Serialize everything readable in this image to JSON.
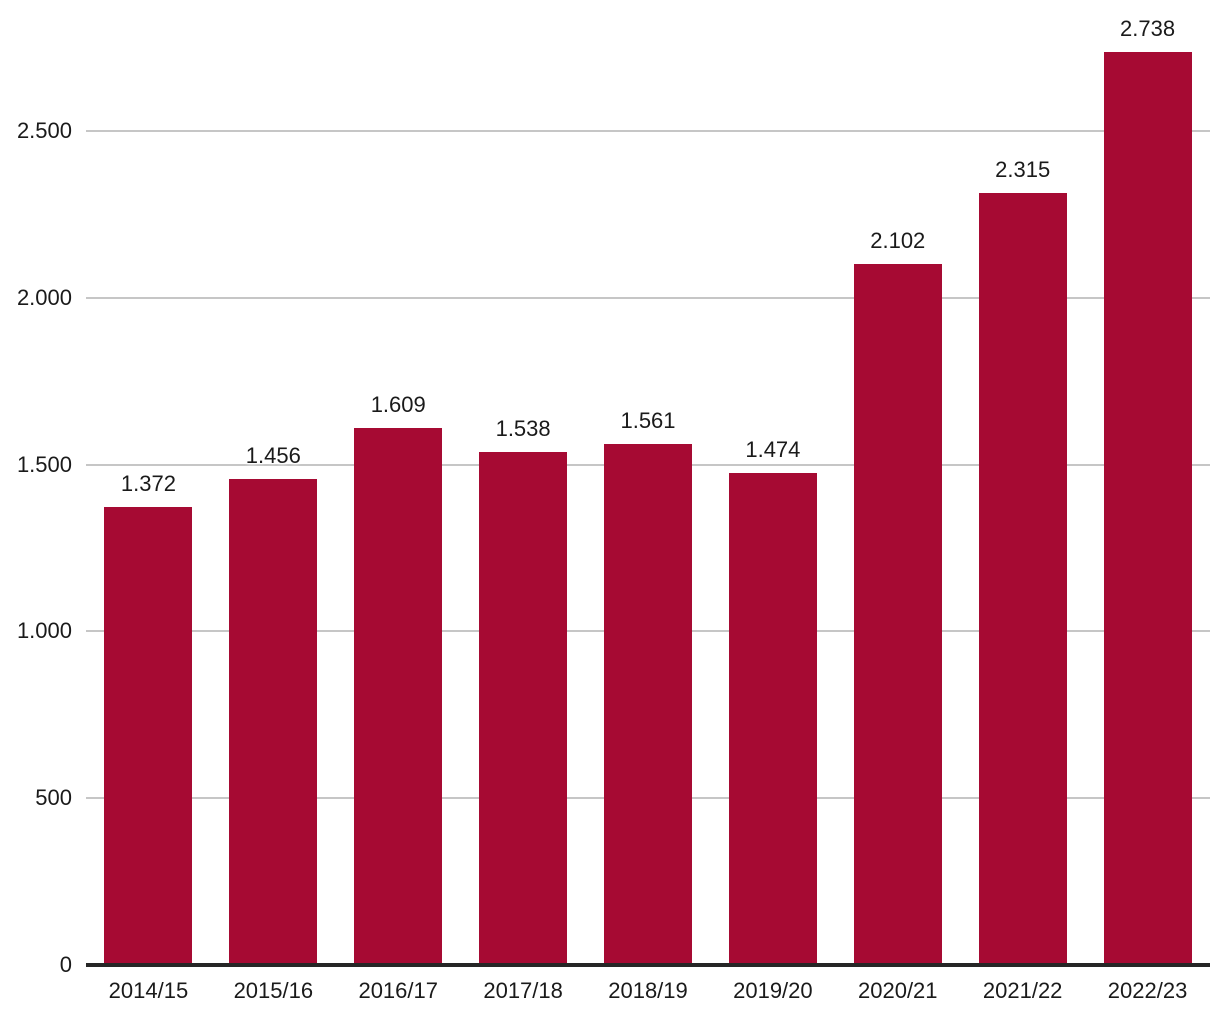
{
  "chart_data": {
    "type": "bar",
    "title": "",
    "xlabel": "",
    "ylabel": "",
    "categories": [
      "2014/15",
      "2015/16",
      "2016/17",
      "2017/18",
      "2018/19",
      "2019/20",
      "2020/21",
      "2021/22",
      "2022/23"
    ],
    "values": [
      1372,
      1456,
      1609,
      1538,
      1561,
      1474,
      2102,
      2315,
      2738
    ],
    "value_labels": [
      "1.372",
      "1.456",
      "1.609",
      "1.538",
      "1.561",
      "1.474",
      "2.102",
      "2.315",
      "2.738"
    ],
    "yticks": [
      {
        "value": 0,
        "label": "0"
      },
      {
        "value": 500,
        "label": "500"
      },
      {
        "value": 1000,
        "label": "1.000"
      },
      {
        "value": 1500,
        "label": "1.500"
      },
      {
        "value": 2000,
        "label": "2.000"
      },
      {
        "value": 2500,
        "label": "2.500"
      }
    ],
    "ylim": [
      0,
      2750
    ],
    "grid": true,
    "legend": "none",
    "bar_color": "#A60A33",
    "gridline_color": "#C6C6C6",
    "baseline_color": "#262626",
    "text_color": "#1A1A1A",
    "background_color": "#FFFFFF"
  }
}
